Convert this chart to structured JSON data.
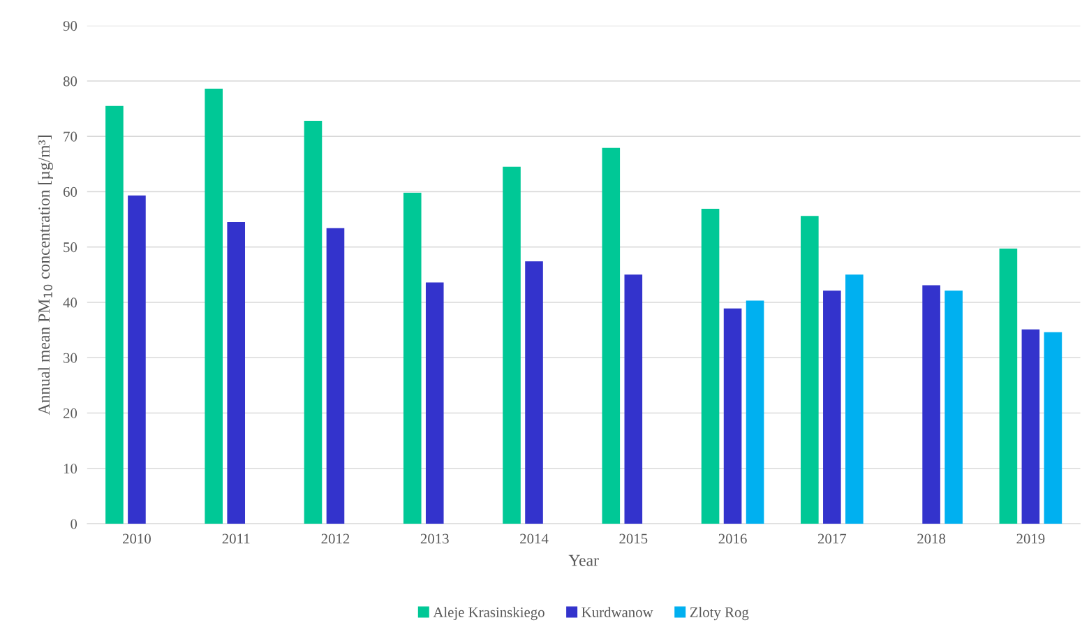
{
  "chart_data": {
    "type": "bar",
    "xlabel": "Year",
    "ylabel": "Annual mean PM$_{10}$ concentration [µg/m³]",
    "categories": [
      "2010",
      "2011",
      "2012",
      "2013",
      "2014",
      "2015",
      "2016",
      "2017",
      "2018",
      "2019"
    ],
    "series": [
      {
        "name": "Aleje Krasinskiego",
        "color": "#00c896",
        "values": [
          75.5,
          78.6,
          72.8,
          59.8,
          64.5,
          67.9,
          56.9,
          55.6,
          null,
          49.7
        ]
      },
      {
        "name": "Kurdwanow",
        "color": "#3333cc",
        "values": [
          59.3,
          54.5,
          53.4,
          43.6,
          47.4,
          45.0,
          38.9,
          42.1,
          43.1,
          35.1
        ]
      },
      {
        "name": "Zloty Rog",
        "color": "#00b0f0",
        "values": [
          null,
          null,
          null,
          null,
          null,
          null,
          40.3,
          45.0,
          42.1,
          34.6
        ]
      }
    ],
    "ylim": [
      0,
      90
    ],
    "yticks": [
      0,
      10,
      20,
      30,
      40,
      50,
      60,
      70,
      80,
      90
    ],
    "grid": "y",
    "legend": "bottom"
  }
}
